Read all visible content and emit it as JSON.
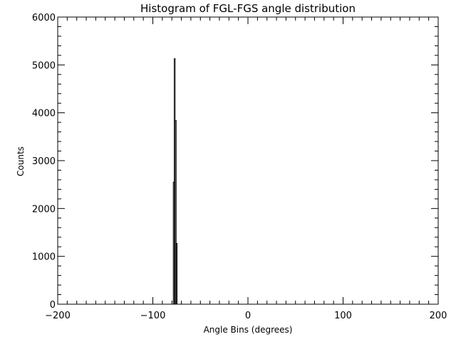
{
  "chart_data": {
    "type": "bar",
    "style": "step-histogram",
    "title": "Histogram of FGL-FGS angle distribution",
    "xlabel": "Angle Bins (degrees)",
    "ylabel": "Counts",
    "xlim": [
      -200,
      200
    ],
    "ylim": [
      0,
      6000
    ],
    "xticks": [
      -200,
      -100,
      0,
      100,
      200
    ],
    "yticks": [
      0,
      1000,
      2000,
      3000,
      4000,
      5000,
      6000
    ],
    "x_minor_step": 10,
    "y_minor_step": 200,
    "grid": false,
    "bin_width": 1,
    "x": [
      -79,
      -78,
      -77,
      -76,
      -75,
      -74
    ],
    "values": [
      0,
      2550,
      5130,
      3840,
      1270,
      0
    ]
  }
}
